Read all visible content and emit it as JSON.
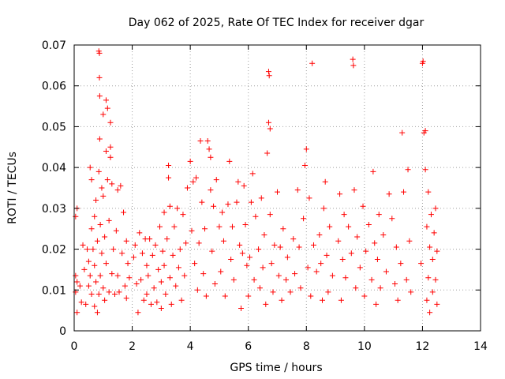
{
  "chart_data": {
    "type": "scatter",
    "title": "Day 062 of 2025, Rate Of TEC Index for receiver dgar",
    "xlabel": "GPS time / hours",
    "ylabel": "ROTI / TECUs",
    "xlim": [
      0,
      14
    ],
    "ylim": [
      0,
      0.07
    ],
    "xticks": [
      0,
      2,
      4,
      6,
      8,
      10,
      12,
      14
    ],
    "yticks": [
      0,
      0.01,
      0.02,
      0.03,
      0.04,
      0.05,
      0.06,
      0.07
    ],
    "xtick_labels": [
      "0",
      "2",
      "4",
      "6",
      "8",
      "10",
      "12",
      "14"
    ],
    "ytick_labels": [
      "0",
      "0.01",
      "0.02",
      "0.03",
      "0.04",
      "0.05",
      "0.06",
      "0.07"
    ],
    "grid": true,
    "marker": "+",
    "color": "#ff0000",
    "series": [
      {
        "name": "ROTI",
        "points": [
          [
            0.05,
            0.0135
          ],
          [
            0.05,
            0.0095
          ],
          [
            0.05,
            0.028
          ],
          [
            0.1,
            0.03
          ],
          [
            0.1,
            0.012
          ],
          [
            0.1,
            0.0045
          ],
          [
            0.2,
            0.011
          ],
          [
            0.25,
            0.007
          ],
          [
            0.3,
            0.021
          ],
          [
            0.35,
            0.015
          ],
          [
            0.4,
            0.0065
          ],
          [
            0.45,
            0.02
          ],
          [
            0.5,
            0.011
          ],
          [
            0.5,
            0.017
          ],
          [
            0.55,
            0.0135
          ],
          [
            0.55,
            0.04
          ],
          [
            0.6,
            0.037
          ],
          [
            0.6,
            0.025
          ],
          [
            0.6,
            0.009
          ],
          [
            0.65,
            0.02
          ],
          [
            0.7,
            0.028
          ],
          [
            0.7,
            0.016
          ],
          [
            0.7,
            0.006
          ],
          [
            0.75,
            0.012
          ],
          [
            0.75,
            0.032
          ],
          [
            0.8,
            0.0045
          ],
          [
            0.8,
            0.022
          ],
          [
            0.85,
            0.009
          ],
          [
            0.85,
            0.039
          ],
          [
            0.85,
            0.0685
          ],
          [
            0.87,
            0.068
          ],
          [
            0.87,
            0.062
          ],
          [
            0.88,
            0.0575
          ],
          [
            0.88,
            0.047
          ],
          [
            0.9,
            0.0135
          ],
          [
            0.9,
            0.026
          ],
          [
            0.95,
            0.035
          ],
          [
            0.95,
            0.019
          ],
          [
            1.0,
            0.0105
          ],
          [
            1.0,
            0.033
          ],
          [
            1.0,
            0.053
          ],
          [
            1.05,
            0.0075
          ],
          [
            1.05,
            0.023
          ],
          [
            1.1,
            0.044
          ],
          [
            1.1,
            0.0165
          ],
          [
            1.1,
            0.0565
          ],
          [
            1.15,
            0.0545
          ],
          [
            1.15,
            0.037
          ],
          [
            1.2,
            0.0095
          ],
          [
            1.2,
            0.027
          ],
          [
            1.25,
            0.0425
          ],
          [
            1.25,
            0.051
          ],
          [
            1.25,
            0.045
          ],
          [
            1.3,
            0.014
          ],
          [
            1.3,
            0.036
          ],
          [
            1.35,
            0.02
          ],
          [
            1.4,
            0.009
          ],
          [
            1.45,
            0.0245
          ],
          [
            1.5,
            0.0345
          ],
          [
            1.5,
            0.0135
          ],
          [
            1.55,
            0.0095
          ],
          [
            1.6,
            0.0355
          ],
          [
            1.65,
            0.019
          ],
          [
            1.7,
            0.029
          ],
          [
            1.75,
            0.011
          ],
          [
            1.8,
            0.022
          ],
          [
            1.8,
            0.008
          ],
          [
            1.85,
            0.0165
          ],
          [
            1.9,
            0.013
          ],
          [
            2.05,
            0.018
          ],
          [
            2.1,
            0.021
          ],
          [
            2.15,
            0.0115
          ],
          [
            2.2,
            0.0045
          ],
          [
            2.25,
            0.024
          ],
          [
            2.3,
            0.0125
          ],
          [
            2.35,
            0.019
          ],
          [
            2.4,
            0.0075
          ],
          [
            2.45,
            0.0225
          ],
          [
            2.5,
            0.009
          ],
          [
            2.5,
            0.016
          ],
          [
            2.55,
            0.0135
          ],
          [
            2.6,
            0.0225
          ],
          [
            2.65,
            0.0065
          ],
          [
            2.7,
            0.0185
          ],
          [
            2.75,
            0.0105
          ],
          [
            2.8,
            0.021
          ],
          [
            2.85,
            0.007
          ],
          [
            2.9,
            0.015
          ],
          [
            2.95,
            0.0255
          ],
          [
            3.0,
            0.012
          ],
          [
            3.0,
            0.0055
          ],
          [
            3.05,
            0.0195
          ],
          [
            3.1,
            0.016
          ],
          [
            3.1,
            0.029
          ],
          [
            3.15,
            0.009
          ],
          [
            3.2,
            0.0225
          ],
          [
            3.25,
            0.0405
          ],
          [
            3.25,
            0.0375
          ],
          [
            3.3,
            0.013
          ],
          [
            3.3,
            0.0305
          ],
          [
            3.35,
            0.0065
          ],
          [
            3.4,
            0.0185
          ],
          [
            3.45,
            0.0255
          ],
          [
            3.5,
            0.011
          ],
          [
            3.55,
            0.03
          ],
          [
            3.6,
            0.0155
          ],
          [
            3.65,
            0.02
          ],
          [
            3.7,
            0.0075
          ],
          [
            3.75,
            0.0285
          ],
          [
            3.8,
            0.0135
          ],
          [
            3.85,
            0.0215
          ],
          [
            3.9,
            0.035
          ],
          [
            4.0,
            0.0415
          ],
          [
            4.05,
            0.0245
          ],
          [
            4.1,
            0.0365
          ],
          [
            4.15,
            0.0165
          ],
          [
            4.2,
            0.0375
          ],
          [
            4.25,
            0.01
          ],
          [
            4.3,
            0.0215
          ],
          [
            4.35,
            0.0465
          ],
          [
            4.4,
            0.0315
          ],
          [
            4.45,
            0.014
          ],
          [
            4.5,
            0.025
          ],
          [
            4.55,
            0.0085
          ],
          [
            4.6,
            0.0465
          ],
          [
            4.65,
            0.0445
          ],
          [
            4.7,
            0.0425
          ],
          [
            4.7,
            0.0345
          ],
          [
            4.75,
            0.0195
          ],
          [
            4.8,
            0.0305
          ],
          [
            4.85,
            0.0115
          ],
          [
            4.9,
            0.037
          ],
          [
            5.0,
            0.0255
          ],
          [
            5.05,
            0.0145
          ],
          [
            5.1,
            0.029
          ],
          [
            5.15,
            0.022
          ],
          [
            5.2,
            0.0085
          ],
          [
            5.3,
            0.031
          ],
          [
            5.35,
            0.0415
          ],
          [
            5.4,
            0.0175
          ],
          [
            5.45,
            0.0255
          ],
          [
            5.5,
            0.0125
          ],
          [
            5.6,
            0.0315
          ],
          [
            5.65,
            0.0365
          ],
          [
            5.7,
            0.021
          ],
          [
            5.75,
            0.0055
          ],
          [
            5.8,
            0.019
          ],
          [
            5.85,
            0.0355
          ],
          [
            5.9,
            0.026
          ],
          [
            5.95,
            0.016
          ],
          [
            6.0,
            0.0085
          ],
          [
            6.05,
            0.018
          ],
          [
            6.1,
            0.0315
          ],
          [
            6.15,
            0.0385
          ],
          [
            6.2,
            0.0125
          ],
          [
            6.25,
            0.028
          ],
          [
            6.35,
            0.02
          ],
          [
            6.4,
            0.0105
          ],
          [
            6.45,
            0.0325
          ],
          [
            6.5,
            0.0155
          ],
          [
            6.55,
            0.0235
          ],
          [
            6.6,
            0.0065
          ],
          [
            6.65,
            0.0435
          ],
          [
            6.7,
            0.0635
          ],
          [
            6.72,
            0.0625
          ],
          [
            6.7,
            0.051
          ],
          [
            6.75,
            0.0495
          ],
          [
            6.75,
            0.0285
          ],
          [
            6.8,
            0.0165
          ],
          [
            6.85,
            0.0095
          ],
          [
            6.9,
            0.021
          ],
          [
            7.0,
            0.034
          ],
          [
            7.05,
            0.0135
          ],
          [
            7.1,
            0.0205
          ],
          [
            7.15,
            0.0075
          ],
          [
            7.2,
            0.025
          ],
          [
            7.3,
            0.0125
          ],
          [
            7.35,
            0.018
          ],
          [
            7.45,
            0.0095
          ],
          [
            7.55,
            0.0225
          ],
          [
            7.6,
            0.014
          ],
          [
            7.7,
            0.0345
          ],
          [
            7.75,
            0.0205
          ],
          [
            7.8,
            0.0105
          ],
          [
            7.9,
            0.0275
          ],
          [
            7.95,
            0.0405
          ],
          [
            8.0,
            0.0445
          ],
          [
            8.05,
            0.0155
          ],
          [
            8.1,
            0.0325
          ],
          [
            8.15,
            0.0085
          ],
          [
            8.2,
            0.0655
          ],
          [
            8.25,
            0.021
          ],
          [
            8.35,
            0.0145
          ],
          [
            8.45,
            0.0235
          ],
          [
            8.5,
            0.0165
          ],
          [
            8.55,
            0.0075
          ],
          [
            8.6,
            0.03
          ],
          [
            8.65,
            0.0365
          ],
          [
            8.7,
            0.0185
          ],
          [
            8.75,
            0.0095
          ],
          [
            8.8,
            0.0255
          ],
          [
            8.9,
            0.0135
          ],
          [
            9.1,
            0.022
          ],
          [
            9.15,
            0.0335
          ],
          [
            9.2,
            0.0075
          ],
          [
            9.25,
            0.0175
          ],
          [
            9.3,
            0.0285
          ],
          [
            9.35,
            0.013
          ],
          [
            9.45,
            0.0255
          ],
          [
            9.55,
            0.019
          ],
          [
            9.6,
            0.0665
          ],
          [
            9.62,
            0.065
          ],
          [
            9.65,
            0.0345
          ],
          [
            9.7,
            0.0105
          ],
          [
            9.75,
            0.023
          ],
          [
            9.85,
            0.0155
          ],
          [
            9.95,
            0.0305
          ],
          [
            10.0,
            0.0085
          ],
          [
            10.05,
            0.0195
          ],
          [
            10.15,
            0.026
          ],
          [
            10.25,
            0.0125
          ],
          [
            10.3,
            0.039
          ],
          [
            10.35,
            0.0215
          ],
          [
            10.4,
            0.0065
          ],
          [
            10.45,
            0.0175
          ],
          [
            10.5,
            0.0285
          ],
          [
            10.55,
            0.0105
          ],
          [
            10.65,
            0.0235
          ],
          [
            10.75,
            0.0145
          ],
          [
            10.85,
            0.0335
          ],
          [
            10.95,
            0.0275
          ],
          [
            11.05,
            0.0115
          ],
          [
            11.1,
            0.0205
          ],
          [
            11.15,
            0.0075
          ],
          [
            11.25,
            0.0165
          ],
          [
            11.3,
            0.0485
          ],
          [
            11.35,
            0.034
          ],
          [
            11.45,
            0.0125
          ],
          [
            11.5,
            0.0395
          ],
          [
            11.55,
            0.022
          ],
          [
            11.6,
            0.0095
          ],
          [
            11.95,
            0.0165
          ],
          [
            12.0,
            0.0655
          ],
          [
            12.02,
            0.066
          ],
          [
            12.05,
            0.0485
          ],
          [
            12.1,
            0.049
          ],
          [
            12.1,
            0.0395
          ],
          [
            12.15,
            0.0075
          ],
          [
            12.15,
            0.0255
          ],
          [
            12.2,
            0.034
          ],
          [
            12.2,
            0.013
          ],
          [
            12.25,
            0.0045
          ],
          [
            12.25,
            0.0205
          ],
          [
            12.3,
            0.0285
          ],
          [
            12.35,
            0.0095
          ],
          [
            12.35,
            0.0175
          ],
          [
            12.4,
            0.024
          ],
          [
            12.45,
            0.0125
          ],
          [
            12.45,
            0.03
          ],
          [
            12.5,
            0.0065
          ],
          [
            12.5,
            0.0195
          ]
        ]
      }
    ]
  }
}
